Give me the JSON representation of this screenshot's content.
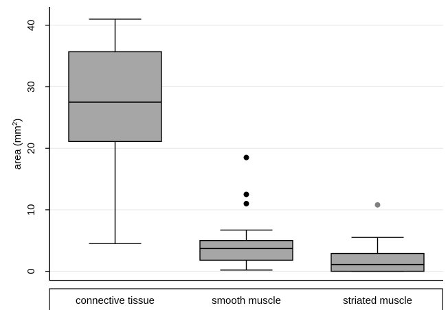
{
  "chart_data": {
    "type": "box",
    "ylabel": "area (mm",
    "ylabel_sup": "2",
    "ylabel_close": ")",
    "ylim": [
      -1.5,
      43
    ],
    "yticks": [
      0,
      10,
      20,
      30,
      40
    ],
    "grid": true,
    "categories": [
      "connective tissue",
      "smooth muscle",
      "striated muscle"
    ],
    "boxes": [
      {
        "category": "connective tissue",
        "whisker_low": 4.5,
        "q1": 21.1,
        "median": 27.5,
        "q3": 35.7,
        "whisker_high": 41.0,
        "outliers": []
      },
      {
        "category": "smooth muscle",
        "whisker_low": 0.2,
        "q1": 1.8,
        "median": 3.7,
        "q3": 5.0,
        "whisker_high": 6.7,
        "outliers": [
          11.0,
          12.5,
          18.5
        ]
      },
      {
        "category": "striated muscle",
        "whisker_low": 0.0,
        "q1": 0.0,
        "median": 1.1,
        "q3": 2.9,
        "whisker_high": 5.5,
        "outliers": [
          10.8
        ]
      }
    ],
    "colors": {
      "box_fill": "#a6a6a6",
      "line": "#000000",
      "grid": "#e6e6e6",
      "outlier": "#000000",
      "outlier_alt": "#808080"
    }
  }
}
